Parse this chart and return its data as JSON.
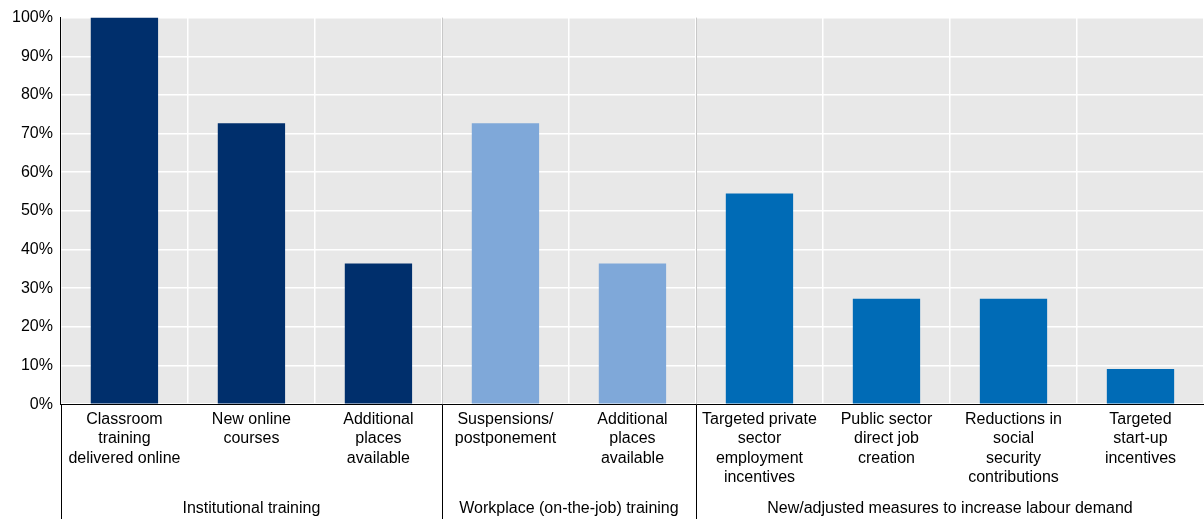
{
  "chart_data": {
    "type": "bar",
    "categories": [
      "Classroom\ntraining\ndelivered online",
      "New online\ncourses",
      "Additional\nplaces\navailable",
      "Suspensions/\npostponement",
      "Additional\nplaces\navailable",
      "Targeted private\nsector\nemployment\nincentives",
      "Public sector\ndirect job\ncreation",
      "Reductions in\nsocial\nsecurity\ncontributions",
      "Targeted\nstart-up\nincentives"
    ],
    "values": [
      100,
      72.7,
      36.4,
      72.7,
      36.4,
      54.5,
      27.3,
      27.3,
      9.1
    ],
    "colors": [
      "#002f6c",
      "#002f6c",
      "#002f6c",
      "#7fa8d9",
      "#7fa8d9",
      "#006bb6",
      "#006bb6",
      "#006bb6",
      "#006bb6"
    ],
    "ylim": [
      0,
      100
    ],
    "yticks": [
      {
        "value": 0,
        "label": "0%"
      },
      {
        "value": 10,
        "label": "10%"
      },
      {
        "value": 20,
        "label": "20%"
      },
      {
        "value": 30,
        "label": "30%"
      },
      {
        "value": 40,
        "label": "40%"
      },
      {
        "value": 50,
        "label": "50%"
      },
      {
        "value": 60,
        "label": "60%"
      },
      {
        "value": 70,
        "label": "70%"
      },
      {
        "value": 80,
        "label": "80%"
      },
      {
        "value": 90,
        "label": "90%"
      },
      {
        "value": 100,
        "label": "100%"
      }
    ],
    "grid": true,
    "annotations": [
      "Institutional training",
      "Workplace (on-the-job) training",
      "New/adjusted measures to increase labour demand"
    ]
  }
}
